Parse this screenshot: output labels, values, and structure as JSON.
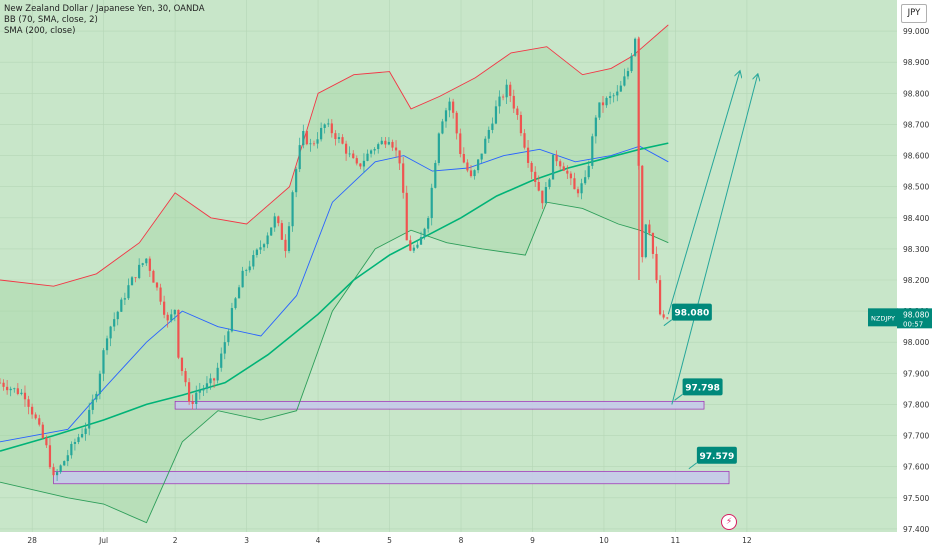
{
  "legend": {
    "title": "New Zealand Dollar / Japanese Yen, 30, OANDA",
    "bb": "BB (70, SMA, close, 2)",
    "sma": "SMA (200, close)"
  },
  "currency_button": "JPY",
  "price_tag": {
    "symbol": "NZDJPY",
    "price": "98.080",
    "countdown": "00:57"
  },
  "colors": {
    "background": "#c8e6c9",
    "bull": "#26a69a",
    "bear": "#ef5350",
    "bb_band": "#f23645",
    "bb_basis": "#2962ff",
    "sma": "#089981",
    "label_bg": "#00897b",
    "zone_fill": "#c5cae9",
    "zone_border": "#9c27b0",
    "arrow": "#26a69a",
    "grid": "#b5d6b6"
  },
  "chart_data": {
    "type": "candlestick",
    "symbol": "NZDJPY",
    "timeframe": "30",
    "ylim": [
      97.39,
      99.1
    ],
    "y_ticks": [
      "99.000",
      "98.900",
      "98.800",
      "98.700",
      "98.600",
      "98.500",
      "98.400",
      "98.300",
      "98.200",
      "98.100",
      "98.000",
      "97.900",
      "97.800",
      "97.700",
      "97.600",
      "97.500",
      "97.400"
    ],
    "x_ticks": [
      "28",
      "Jul",
      "2",
      "3",
      "4",
      "5",
      "8",
      "9",
      "10",
      "11",
      "12"
    ],
    "x_range_days": [
      -0.45,
      12.1
    ],
    "price_path": [
      [
        -0.45,
        97.87
      ],
      [
        -0.1,
        97.83
      ],
      [
        0.05,
        97.75
      ],
      [
        0.2,
        97.66
      ],
      [
        0.3,
        97.56
      ],
      [
        0.45,
        97.62
      ],
      [
        0.6,
        97.68
      ],
      [
        0.75,
        97.73
      ],
      [
        0.9,
        97.85
      ],
      [
        1.05,
        98.03
      ],
      [
        1.2,
        98.1
      ],
      [
        1.35,
        98.18
      ],
      [
        1.5,
        98.24
      ],
      [
        1.6,
        98.27
      ],
      [
        1.7,
        98.2
      ],
      [
        1.8,
        98.14
      ],
      [
        1.9,
        98.06
      ],
      [
        2.0,
        98.11
      ],
      [
        2.05,
        97.95
      ],
      [
        2.15,
        97.87
      ],
      [
        2.2,
        97.79
      ],
      [
        2.3,
        97.84
      ],
      [
        2.45,
        97.86
      ],
      [
        2.55,
        97.88
      ],
      [
        2.65,
        97.96
      ],
      [
        2.8,
        98.1
      ],
      [
        2.95,
        98.22
      ],
      [
        3.1,
        98.27
      ],
      [
        3.25,
        98.33
      ],
      [
        3.4,
        98.4
      ],
      [
        3.55,
        98.3
      ],
      [
        3.65,
        98.5
      ],
      [
        3.78,
        98.67
      ],
      [
        3.9,
        98.63
      ],
      [
        4.1,
        98.7
      ],
      [
        4.3,
        98.65
      ],
      [
        4.55,
        98.56
      ],
      [
        4.75,
        98.62
      ],
      [
        5.0,
        98.66
      ],
      [
        5.15,
        98.58
      ],
      [
        5.25,
        98.3
      ],
      [
        5.4,
        98.3
      ],
      [
        5.55,
        98.42
      ],
      [
        5.7,
        98.7
      ],
      [
        5.85,
        98.78
      ],
      [
        6.0,
        98.6
      ],
      [
        6.15,
        98.52
      ],
      [
        6.3,
        98.62
      ],
      [
        6.5,
        98.76
      ],
      [
        6.65,
        98.82
      ],
      [
        6.8,
        98.72
      ],
      [
        6.95,
        98.58
      ],
      [
        7.15,
        98.45
      ],
      [
        7.3,
        98.6
      ],
      [
        7.45,
        98.56
      ],
      [
        7.6,
        98.48
      ],
      [
        7.75,
        98.52
      ],
      [
        7.9,
        98.75
      ],
      [
        8.05,
        98.78
      ],
      [
        8.2,
        98.8
      ],
      [
        8.35,
        98.88
      ],
      [
        8.42,
        98.98
      ],
      [
        8.47,
        98.99
      ],
      [
        8.5,
        98.2
      ],
      [
        8.6,
        98.42
      ],
      [
        8.7,
        98.26
      ],
      [
        8.8,
        98.06
      ],
      [
        8.9,
        98.08
      ]
    ],
    "bb_upper": [
      [
        -0.45,
        98.2
      ],
      [
        0.3,
        98.18
      ],
      [
        0.9,
        98.22
      ],
      [
        1.5,
        98.32
      ],
      [
        2.0,
        98.48
      ],
      [
        2.5,
        98.4
      ],
      [
        3.0,
        98.38
      ],
      [
        3.6,
        98.5
      ],
      [
        4.0,
        98.8
      ],
      [
        4.5,
        98.86
      ],
      [
        5.0,
        98.87
      ],
      [
        5.3,
        98.75
      ],
      [
        5.7,
        98.79
      ],
      [
        6.2,
        98.85
      ],
      [
        6.7,
        98.93
      ],
      [
        7.2,
        98.95
      ],
      [
        7.7,
        98.86
      ],
      [
        8.1,
        98.88
      ],
      [
        8.4,
        98.92
      ],
      [
        8.9,
        99.02
      ]
    ],
    "bb_lower": [
      [
        -0.45,
        97.55
      ],
      [
        0.5,
        97.5
      ],
      [
        1.0,
        97.48
      ],
      [
        1.6,
        97.42
      ],
      [
        2.1,
        97.68
      ],
      [
        2.6,
        97.78
      ],
      [
        3.2,
        97.75
      ],
      [
        3.7,
        97.78
      ],
      [
        4.2,
        98.1
      ],
      [
        4.8,
        98.3
      ],
      [
        5.3,
        98.36
      ],
      [
        5.8,
        98.32
      ],
      [
        6.3,
        98.3
      ],
      [
        6.9,
        98.28
      ],
      [
        7.2,
        98.45
      ],
      [
        7.7,
        98.43
      ],
      [
        8.2,
        98.38
      ],
      [
        8.5,
        98.36
      ],
      [
        8.9,
        98.32
      ]
    ],
    "bb_basis": [
      [
        -0.45,
        97.68
      ],
      [
        0.5,
        97.72
      ],
      [
        1.0,
        97.85
      ],
      [
        1.6,
        98.0
      ],
      [
        2.1,
        98.1
      ],
      [
        2.6,
        98.05
      ],
      [
        3.2,
        98.02
      ],
      [
        3.7,
        98.15
      ],
      [
        4.2,
        98.45
      ],
      [
        4.8,
        98.58
      ],
      [
        5.2,
        98.6
      ],
      [
        5.6,
        98.55
      ],
      [
        6.1,
        98.56
      ],
      [
        6.6,
        98.6
      ],
      [
        7.1,
        98.62
      ],
      [
        7.6,
        98.58
      ],
      [
        8.1,
        98.6
      ],
      [
        8.5,
        98.63
      ],
      [
        8.9,
        98.58
      ]
    ],
    "sma200": [
      [
        -0.45,
        97.65
      ],
      [
        0.3,
        97.7
      ],
      [
        1.0,
        97.75
      ],
      [
        1.6,
        97.8
      ],
      [
        2.1,
        97.83
      ],
      [
        2.7,
        97.87
      ],
      [
        3.3,
        97.96
      ],
      [
        4.0,
        98.09
      ],
      [
        4.5,
        98.2
      ],
      [
        5.0,
        98.28
      ],
      [
        5.5,
        98.34
      ],
      [
        6.0,
        98.4
      ],
      [
        6.5,
        98.47
      ],
      [
        7.0,
        98.52
      ],
      [
        7.5,
        98.56
      ],
      [
        8.0,
        98.59
      ],
      [
        8.5,
        98.62
      ],
      [
        8.9,
        98.64
      ]
    ],
    "zones": [
      {
        "label": "97.798",
        "x0": 2.0,
        "x1": 9.4,
        "low": 97.785,
        "high": 97.81
      },
      {
        "label": "97.579",
        "x0": 0.3,
        "x1": 9.75,
        "low": 97.545,
        "high": 97.585
      }
    ],
    "price_labels": [
      {
        "label": "98.080",
        "x": 8.95,
        "y": 98.095
      },
      {
        "label": "97.798",
        "x": 9.1,
        "y": 97.855
      },
      {
        "label": "97.579",
        "x": 9.3,
        "y": 97.635
      }
    ],
    "projection_arrows": [
      [
        [
          8.9,
          98.09
        ],
        [
          9.9,
          98.87
        ]
      ],
      [
        [
          8.95,
          97.8
        ],
        [
          10.15,
          98.86
        ]
      ]
    ]
  }
}
